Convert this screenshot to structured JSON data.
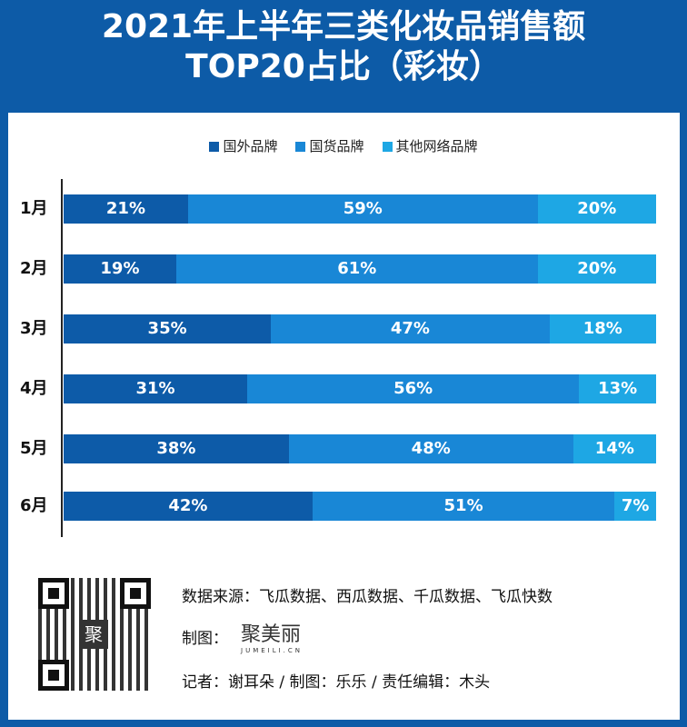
{
  "title_line1": "2021年上半年三类化妆品销售额",
  "title_line2": "TOP20占比（彩妆）",
  "chart_data": {
    "type": "bar",
    "orientation": "horizontal-stacked-100",
    "categories": [
      "1月",
      "2月",
      "3月",
      "4月",
      "5月",
      "6月"
    ],
    "series": [
      {
        "name": "国外品牌",
        "color": "#0d5ba8",
        "values": [
          21,
          19,
          35,
          31,
          38,
          42
        ],
        "labels": [
          "21%",
          "19%",
          "35%",
          "31%",
          "38%",
          "42%"
        ]
      },
      {
        "name": "国货品牌",
        "color": "#1987d6",
        "values": [
          59,
          61,
          47,
          56,
          48,
          51
        ],
        "labels": [
          "59%",
          "61%",
          "47%",
          "56%",
          "48%",
          "51%"
        ]
      },
      {
        "name": "其他网络品牌",
        "color": "#1ea7e4",
        "values": [
          20,
          20,
          18,
          13,
          14,
          7
        ],
        "labels": [
          "20%",
          "20%",
          "18%",
          "13%",
          "14%",
          "7%"
        ]
      }
    ],
    "legend": "top"
  },
  "footer": {
    "source": "数据来源：飞瓜数据、西瓜数据、千瓜数据、飞瓜快数",
    "chart_by_label": "制图：",
    "logo_text": "聚美丽",
    "logo_sub": "JUMEILI.CN",
    "credits": "记者：谢耳朵 / 制图：乐乐 / 责任编辑：木头",
    "qr_center": "聚"
  }
}
